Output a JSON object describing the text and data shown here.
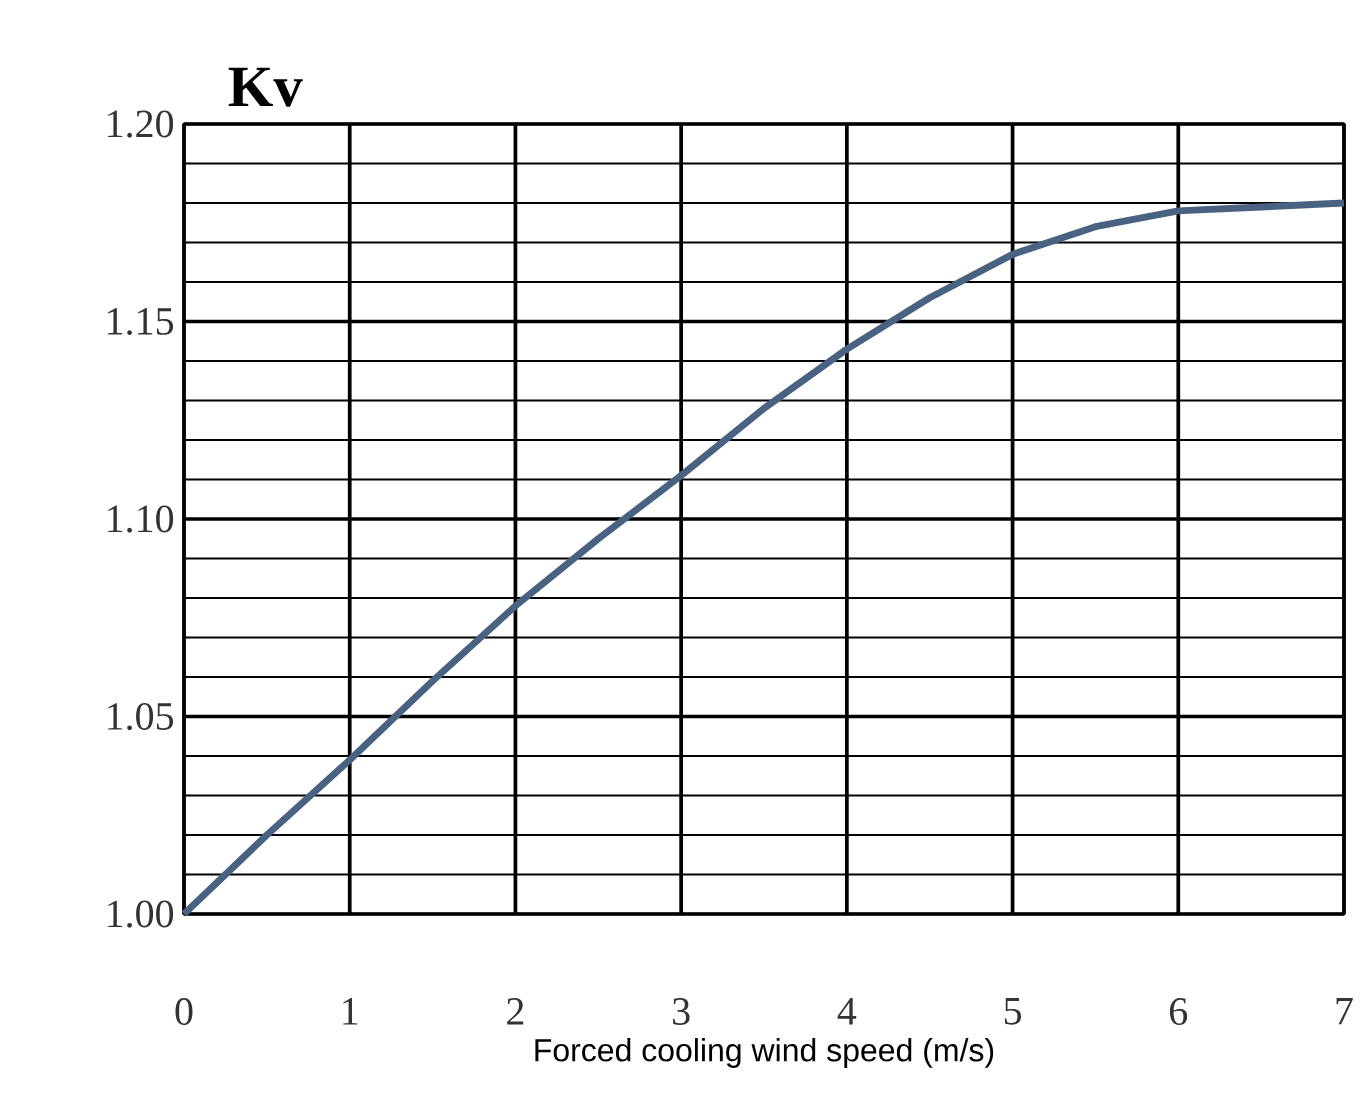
{
  "chart_data": {
    "type": "line",
    "xlabel": "Forced cooling wind speed (m/s)",
    "ylabel": "Kv",
    "xlim": [
      0,
      7
    ],
    "xticks": [
      0,
      1,
      2,
      3,
      4,
      5,
      6,
      7
    ],
    "ylim": [
      1.0,
      1.2
    ],
    "yticks": [
      {
        "value": 1.0,
        "label": "1.00"
      },
      {
        "value": 1.05,
        "label": "1.05"
      },
      {
        "value": 1.1,
        "label": "1.10"
      },
      {
        "value": 1.15,
        "label": "1.15"
      },
      {
        "value": 1.2,
        "label": "1.20"
      }
    ],
    "grid": true,
    "marker": "none",
    "line_style": "solid",
    "series": [
      {
        "color": "#4a6282",
        "x": [
          0,
          0.5,
          1,
          1.5,
          2,
          2.5,
          3,
          3.5,
          4,
          4.5,
          5,
          5.5,
          6,
          6.5,
          7
        ],
        "values": [
          1.0,
          1.02,
          1.039,
          1.059,
          1.078,
          1.095,
          1.111,
          1.128,
          1.143,
          1.156,
          1.167,
          1.174,
          1.178,
          1.179,
          1.18
        ]
      }
    ]
  }
}
